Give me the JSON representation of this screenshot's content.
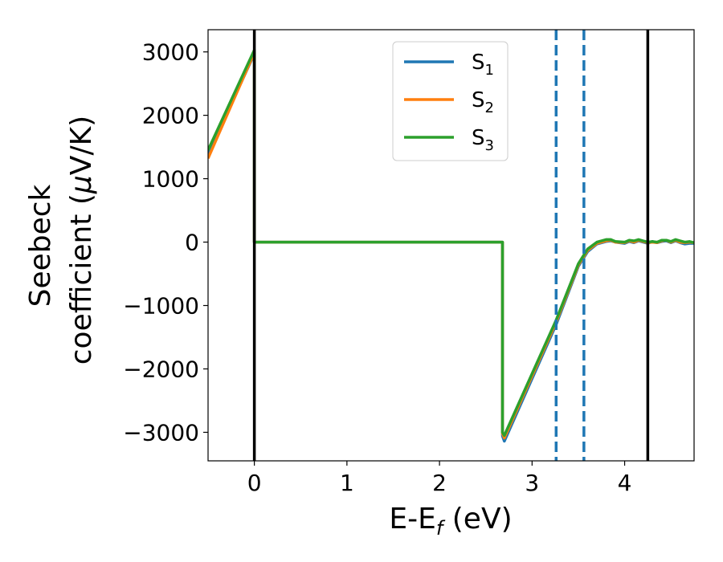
{
  "chart_data": {
    "type": "line",
    "xlabel": "E-E",
    "xlabel_sub": "f",
    "xlabel_unit": " (eV)",
    "ylabel_line1": "Seebeck",
    "ylabel_line2_pre": "coefficient  (",
    "ylabel_mu": "μ",
    "ylabel_line2_post": "V/K)",
    "xlim": [
      -0.5,
      4.75
    ],
    "ylim": [
      -3450,
      3350
    ],
    "xticks": [
      0,
      1,
      2,
      3,
      4
    ],
    "xtick_labels": [
      "0",
      "1",
      "2",
      "3",
      "4"
    ],
    "yticks": [
      3000,
      2000,
      1000,
      0,
      -1000,
      -2000,
      -3000
    ],
    "ytick_labels": [
      "3000",
      "2000",
      "1000",
      "0",
      "−1000",
      "−2000",
      "−3000"
    ],
    "grid": false,
    "legend_position": "top-center",
    "vlines_solid": [
      0,
      4.25
    ],
    "vlines_dashed": [
      3.26,
      3.56
    ],
    "vline_solid_color": "#000000",
    "vline_dashed_color": "#1f77b4",
    "series": [
      {
        "name": "S",
        "name_sub": "1",
        "color": "#1f77b4",
        "x": [
          -0.5,
          0.0,
          0.0,
          2.68,
          2.68,
          2.7,
          3.26,
          3.5,
          3.6,
          3.7,
          3.8,
          3.85,
          3.9,
          4.0,
          4.05,
          4.1,
          4.15,
          4.2,
          4.25,
          4.3,
          4.35,
          4.4,
          4.45,
          4.5,
          4.55,
          4.6,
          4.65,
          4.7,
          4.75
        ],
        "y": [
          1380,
          2970,
          0,
          0,
          -3060,
          -3140,
          -1300,
          -380,
          -150,
          -30,
          10,
          20,
          0,
          -20,
          10,
          -10,
          20,
          0,
          -20,
          10,
          -10,
          10,
          20,
          -10,
          20,
          -10,
          -30,
          -20,
          -20
        ]
      },
      {
        "name": "S",
        "name_sub": "2",
        "color": "#ff7f0e",
        "x": [
          -0.5,
          0.0,
          0.0,
          2.68,
          2.68,
          2.7,
          3.26,
          3.5,
          3.6,
          3.7,
          3.8,
          3.85,
          3.9,
          4.0,
          4.05,
          4.1,
          4.15,
          4.2,
          4.25,
          4.3,
          4.35,
          4.4,
          4.45,
          4.5,
          4.55,
          4.6,
          4.65,
          4.7,
          4.75
        ],
        "y": [
          1320,
          2990,
          0,
          0,
          -3020,
          -3090,
          -1260,
          -360,
          -130,
          -20,
          20,
          30,
          0,
          -10,
          20,
          0,
          30,
          10,
          -10,
          0,
          -10,
          20,
          30,
          0,
          30,
          0,
          -10,
          0,
          -10
        ]
      },
      {
        "name": "S",
        "name_sub": "3",
        "color": "#2ca02c",
        "x": [
          -0.5,
          0.0,
          0.0,
          2.68,
          2.68,
          2.7,
          3.26,
          3.5,
          3.6,
          3.7,
          3.8,
          3.85,
          3.9,
          4.0,
          4.05,
          4.1,
          4.15,
          4.2,
          4.25,
          4.3,
          4.35,
          4.4,
          4.45,
          4.5,
          4.55,
          4.6,
          4.65,
          4.7,
          4.75
        ],
        "y": [
          1450,
          3030,
          0,
          0,
          -3000,
          -3050,
          -1230,
          -340,
          -110,
          0,
          40,
          40,
          10,
          0,
          30,
          20,
          40,
          20,
          0,
          10,
          0,
          30,
          30,
          10,
          40,
          20,
          0,
          10,
          -10
        ]
      }
    ]
  }
}
